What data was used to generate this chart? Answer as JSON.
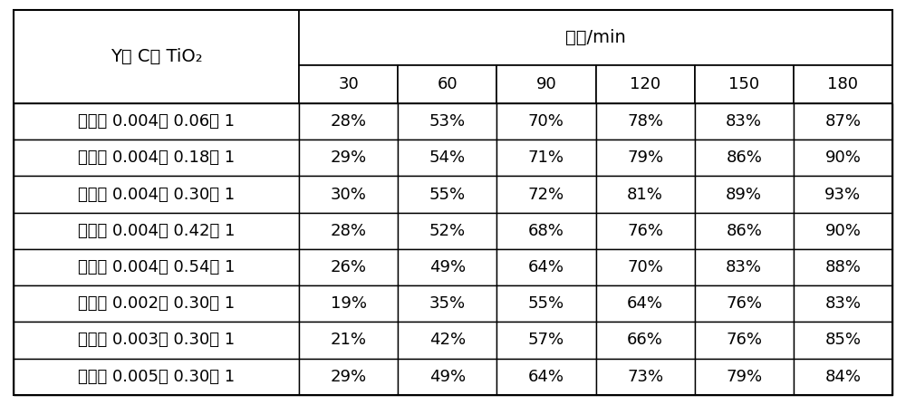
{
  "col_header_top": "时间/min",
  "col_header_sub": [
    "30",
    "60",
    "90",
    "120",
    "150",
    "180"
  ],
  "row_header_label": "Y： C： TiO₂",
  "rows": [
    {
      "label": "本发明 0.004： 0.06： 1",
      "values": [
        "28%",
        "53%",
        "70%",
        "78%",
        "83%",
        "87%"
      ]
    },
    {
      "label": "本发明 0.004： 0.18： 1",
      "values": [
        "29%",
        "54%",
        "71%",
        "79%",
        "86%",
        "90%"
      ]
    },
    {
      "label": "本发明 0.004： 0.30： 1",
      "values": [
        "30%",
        "55%",
        "72%",
        "81%",
        "89%",
        "93%"
      ]
    },
    {
      "label": "本发明 0.004： 0.42： 1",
      "values": [
        "28%",
        "52%",
        "68%",
        "76%",
        "86%",
        "90%"
      ]
    },
    {
      "label": "本发明 0.004： 0.54： 1",
      "values": [
        "26%",
        "49%",
        "64%",
        "70%",
        "83%",
        "88%"
      ]
    },
    {
      "label": "本发明 0.002： 0.30： 1",
      "values": [
        "19%",
        "35%",
        "55%",
        "64%",
        "76%",
        "83%"
      ]
    },
    {
      "label": "本发明 0.003： 0.30： 1",
      "values": [
        "21%",
        "42%",
        "57%",
        "66%",
        "76%",
        "85%"
      ]
    },
    {
      "label": "本发明 0.005： 0.30： 1",
      "values": [
        "29%",
        "49%",
        "64%",
        "73%",
        "79%",
        "84%"
      ]
    }
  ],
  "bg_color": "#ffffff",
  "line_color": "#000000",
  "text_color": "#000000",
  "font_size": 13,
  "header_font_size": 13
}
